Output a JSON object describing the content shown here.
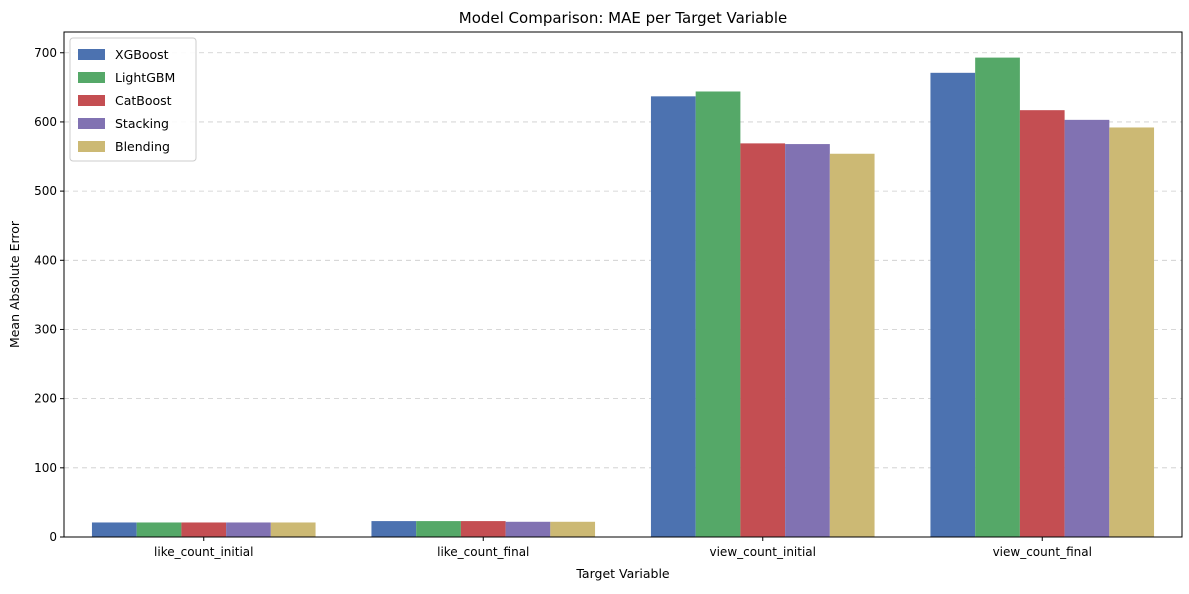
{
  "chart_data": {
    "type": "bar",
    "title": "Model Comparison: MAE per Target Variable",
    "xlabel": "Target Variable",
    "ylabel": "Mean Absolute Error",
    "categories": [
      "like_count_initial",
      "like_count_final",
      "view_count_initial",
      "view_count_final"
    ],
    "series": [
      {
        "name": "XGBoost",
        "color": "#4c72b0",
        "values": [
          21,
          23,
          637,
          671
        ]
      },
      {
        "name": "LightGBM",
        "color": "#55a868",
        "values": [
          21,
          23,
          644,
          693
        ]
      },
      {
        "name": "CatBoost",
        "color": "#c44e52",
        "values": [
          21,
          23,
          569,
          617
        ]
      },
      {
        "name": "Stacking",
        "color": "#8172b2",
        "values": [
          21,
          22,
          568,
          603
        ]
      },
      {
        "name": "Blending",
        "color": "#ccb974",
        "values": [
          21,
          22,
          554,
          592
        ]
      }
    ],
    "ylim": [
      0,
      730
    ],
    "yticks": [
      0,
      100,
      200,
      300,
      400,
      500,
      600,
      700
    ],
    "grid": "y-dashed",
    "legend_position": "top-left"
  }
}
